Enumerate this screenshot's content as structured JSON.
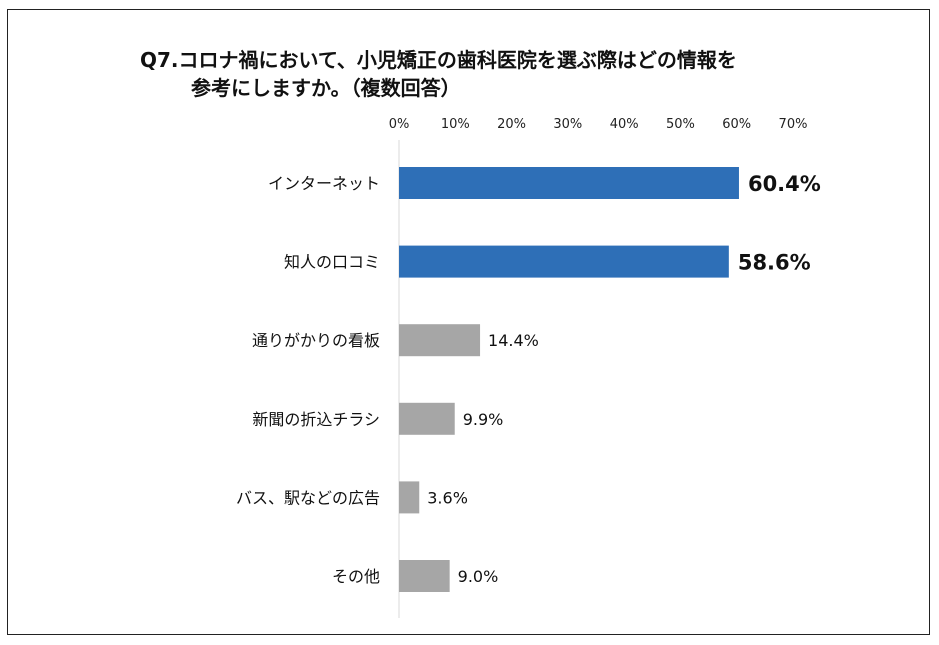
{
  "chart_data": {
    "type": "bar",
    "orientation": "horizontal",
    "title": "Q7.コロナ禍において、小児矯正の歯科医院を選ぶ際はどの情報を参考にしますか。（複数回答）",
    "title_lines": [
      "Q7.コロナ禍において、小児矯正の歯科医院を選ぶ際はどの情報を",
      "参考にしますか。（複数回答）"
    ],
    "categories": [
      "インターネット",
      "知人の口コミ",
      "通りがかりの看板",
      "新聞の折込チラシ",
      "バス、駅などの広告",
      "その他"
    ],
    "values": [
      60.4,
      58.6,
      14.4,
      9.9,
      3.6,
      9.0
    ],
    "value_labels": [
      "60.4%",
      "58.6%",
      "14.4%",
      "9.9%",
      "3.6%",
      "9.0%"
    ],
    "highlighted": [
      true,
      true,
      false,
      false,
      false,
      false
    ],
    "xlim": [
      0,
      70
    ],
    "x_ticks": [
      0,
      10,
      20,
      30,
      40,
      50,
      60,
      70
    ],
    "x_tick_labels": [
      "0%",
      "10%",
      "20%",
      "30%",
      "40%",
      "50%",
      "60%",
      "70%"
    ],
    "x_axis_position": "top",
    "grid": false,
    "colors": {
      "highlight": "#2e6fb7",
      "default": "#a6a6a6"
    }
  }
}
